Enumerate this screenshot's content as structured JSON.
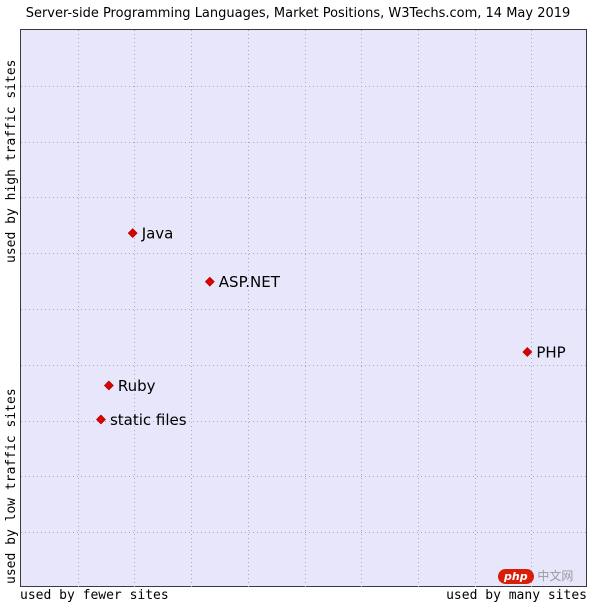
{
  "chart_data": {
    "type": "scatter",
    "title": "Server-side Programming Languages, Market Positions, W3Techs.com, 14 May 2019",
    "x_axis": {
      "label_left": "used by fewer sites",
      "label_right": "used by many sites",
      "range": [
        0,
        1
      ]
    },
    "y_axis": {
      "label_bottom": "used by low traffic sites",
      "label_top": "used by high traffic sites",
      "range": [
        0,
        1
      ]
    },
    "grid": true,
    "points": [
      {
        "label": "Java",
        "x": 0.197,
        "y": 0.636
      },
      {
        "label": "ASP.NET",
        "x": 0.333,
        "y": 0.549
      },
      {
        "label": "PHP",
        "x": 0.893,
        "y": 0.423
      },
      {
        "label": "Ruby",
        "x": 0.155,
        "y": 0.363
      },
      {
        "label": "static files",
        "x": 0.141,
        "y": 0.302
      }
    ],
    "marker_color": "#dd0000"
  },
  "watermark": {
    "badge": "php",
    "text": "中文网"
  }
}
